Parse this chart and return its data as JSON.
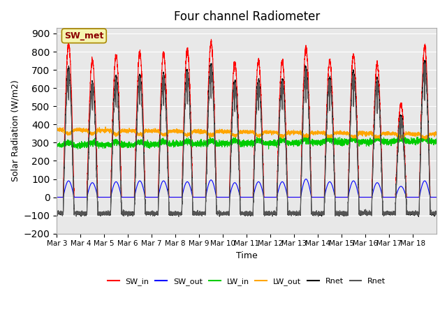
{
  "title": "Four channel Radiometer",
  "xlabel": "Time",
  "ylabel": "Solar Radiation (W/m2)",
  "ylim": [
    -200,
    930
  ],
  "yticks": [
    -200,
    -100,
    0,
    100,
    200,
    300,
    400,
    500,
    600,
    700,
    800,
    900
  ],
  "num_days": 16,
  "xtick_labels": [
    "Mar 3",
    "Mar 4",
    "Mar 5",
    "Mar 6",
    "Mar 7",
    "Mar 8",
    "Mar 9",
    "Mar 10",
    "Mar 11",
    "Mar 12",
    "Mar 13",
    "Mar 14",
    "Mar 15",
    "Mar 16",
    "Mar 17",
    "Mar 18"
  ],
  "colors": {
    "SW_in": "#ff0000",
    "SW_out": "#0000ff",
    "LW_in": "#00cc00",
    "LW_out": "#ffa500",
    "Rnet_black": "#000000",
    "Rnet_dark": "#555555"
  },
  "background_color": "#e8e8e8",
  "grid_color": "#ffffff",
  "annotation_text": "SW_met",
  "annotation_color": "#8b0000",
  "annotation_bg": "#f5f5b0",
  "legend_entries": [
    "SW_in",
    "SW_out",
    "LW_in",
    "LW_out",
    "Rnet",
    "Rnet"
  ]
}
